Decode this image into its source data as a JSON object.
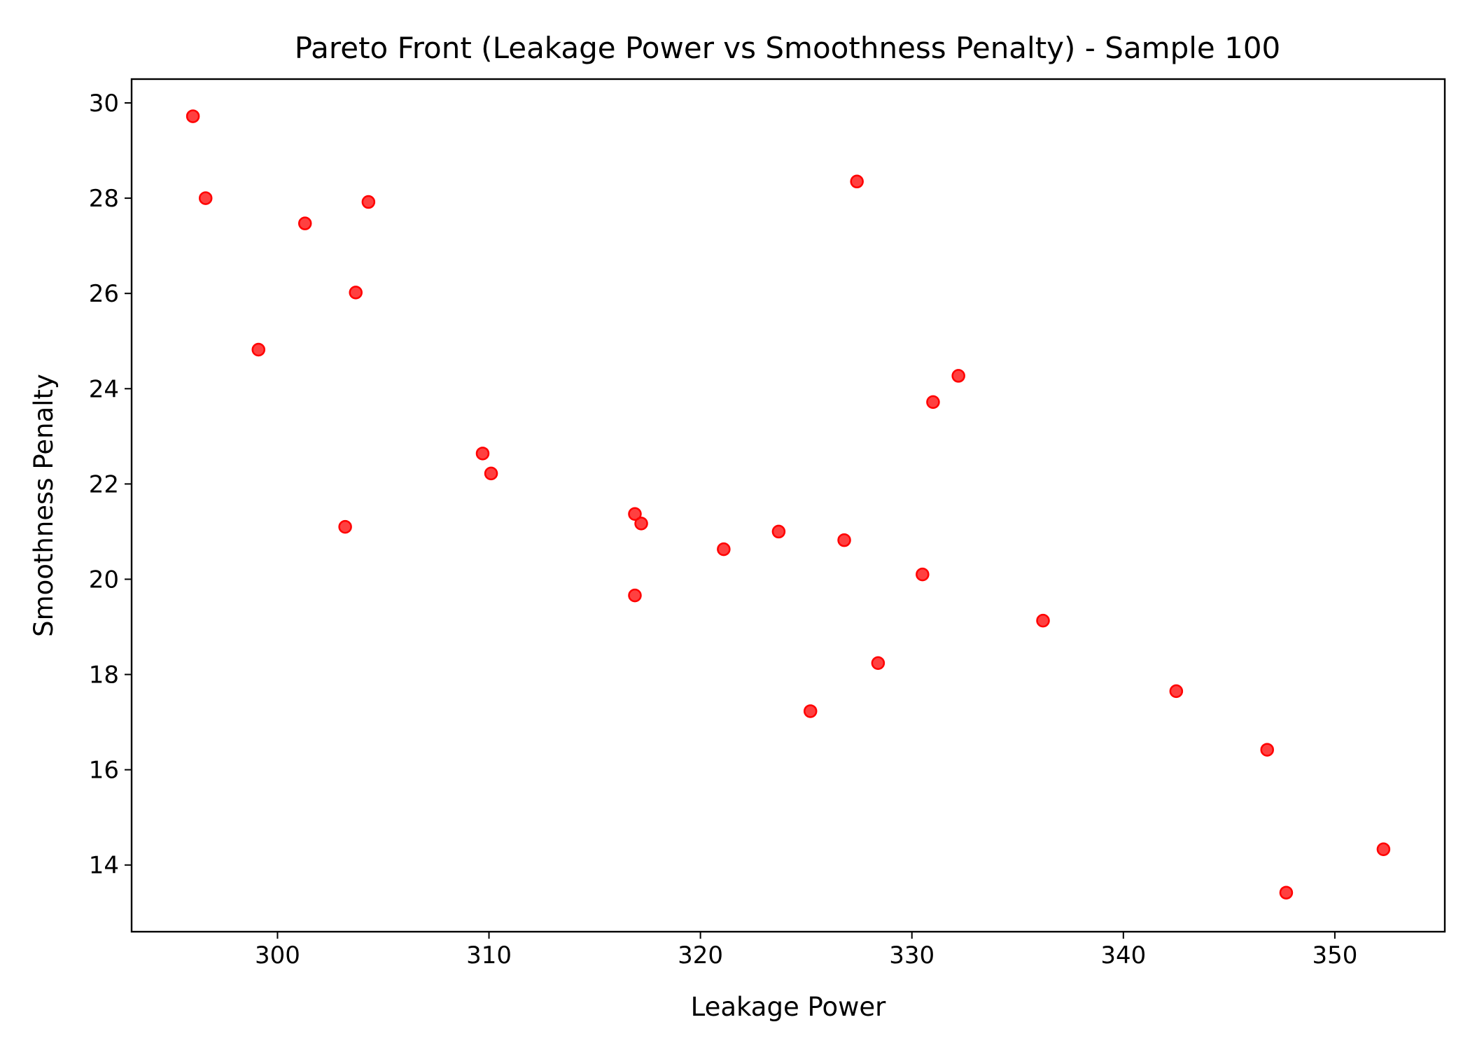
{
  "chart_data": {
    "type": "scatter",
    "title": "Pareto Front (Leakage Power vs Smoothness Penalty) - Sample 100",
    "xlabel": "Leakage Power",
    "ylabel": "Smoothness Penalty",
    "xlim": [
      293.1,
      355.2
    ],
    "ylim": [
      12.6,
      30.5
    ],
    "xticks": [
      300,
      310,
      320,
      330,
      340,
      350
    ],
    "yticks": [
      14,
      16,
      18,
      20,
      22,
      24,
      26,
      28,
      30
    ],
    "xtick_labels": [
      "300",
      "310",
      "320",
      "330",
      "340",
      "350"
    ],
    "ytick_labels": [
      "14",
      "16",
      "18",
      "20",
      "22",
      "24",
      "26",
      "28",
      "30"
    ],
    "grid": false,
    "marker_color": "#ff0000",
    "points": [
      {
        "x": 296.0,
        "y": 29.72
      },
      {
        "x": 296.6,
        "y": 28.0
      },
      {
        "x": 299.1,
        "y": 24.82
      },
      {
        "x": 301.3,
        "y": 27.47
      },
      {
        "x": 303.2,
        "y": 21.1
      },
      {
        "x": 303.7,
        "y": 26.02
      },
      {
        "x": 304.3,
        "y": 27.92
      },
      {
        "x": 309.7,
        "y": 22.64
      },
      {
        "x": 310.1,
        "y": 22.22
      },
      {
        "x": 316.9,
        "y": 21.37
      },
      {
        "x": 317.2,
        "y": 21.17
      },
      {
        "x": 316.9,
        "y": 19.66
      },
      {
        "x": 321.1,
        "y": 20.63
      },
      {
        "x": 323.7,
        "y": 21.0
      },
      {
        "x": 325.2,
        "y": 17.23
      },
      {
        "x": 326.8,
        "y": 20.82
      },
      {
        "x": 327.4,
        "y": 28.35
      },
      {
        "x": 328.4,
        "y": 18.24
      },
      {
        "x": 330.5,
        "y": 20.1
      },
      {
        "x": 331.0,
        "y": 23.72
      },
      {
        "x": 332.2,
        "y": 24.27
      },
      {
        "x": 336.2,
        "y": 19.13
      },
      {
        "x": 342.5,
        "y": 17.65
      },
      {
        "x": 346.8,
        "y": 16.42
      },
      {
        "x": 347.7,
        "y": 13.42
      },
      {
        "x": 352.3,
        "y": 14.33
      }
    ]
  }
}
